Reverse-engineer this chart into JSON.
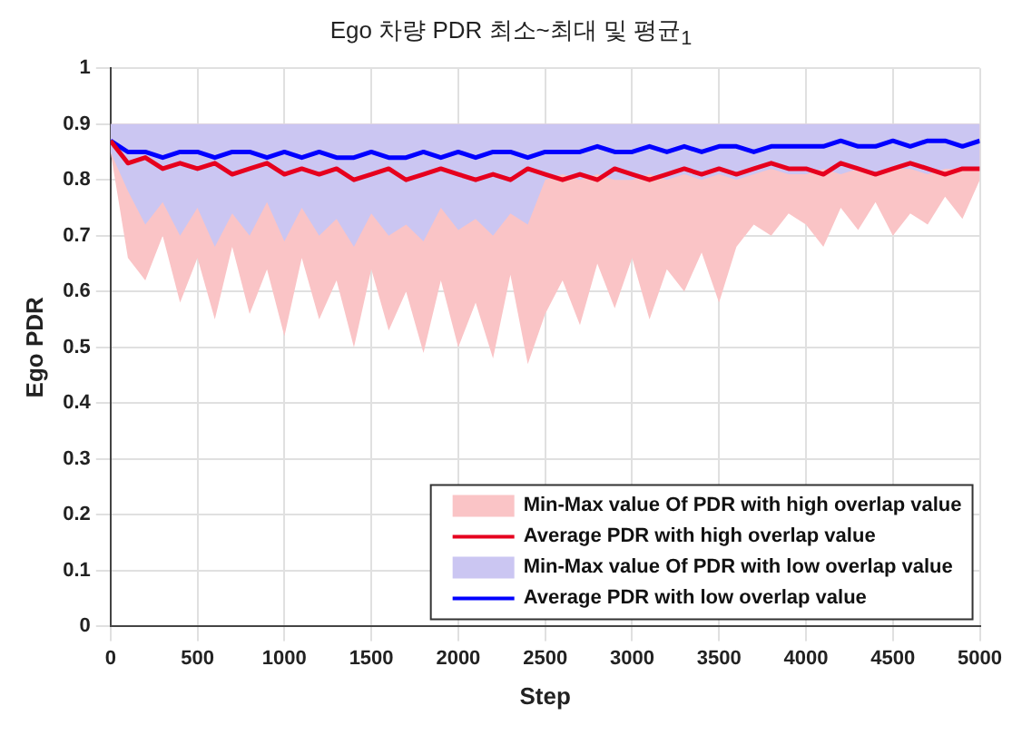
{
  "chart_data": {
    "type": "line",
    "title": "Ego 차량 PDR 최소~최대 및 평균$_{1}$",
    "xlabel": "Step",
    "ylabel": "Ego PDR",
    "x": [
      0,
      100,
      200,
      300,
      400,
      500,
      600,
      700,
      800,
      900,
      1000,
      1100,
      1200,
      1300,
      1400,
      1500,
      1600,
      1700,
      1800,
      1900,
      2000,
      2100,
      2200,
      2300,
      2400,
      2500,
      2600,
      2700,
      2800,
      2900,
      3000,
      3100,
      3200,
      3300,
      3400,
      3500,
      3600,
      3700,
      3800,
      3900,
      4000,
      4100,
      4200,
      4300,
      4400,
      4500,
      4600,
      4700,
      4800,
      4900,
      5000
    ],
    "series": [
      {
        "type": "area",
        "name": "Min-Max value Of PDR with high overlap value",
        "color": "#fac4c6",
        "values": [
          null,
          null,
          null,
          null,
          null,
          null,
          null,
          null,
          null,
          null,
          null,
          null,
          null,
          null,
          null,
          null,
          null,
          null,
          null,
          null,
          null,
          null,
          null,
          null,
          null,
          null,
          null,
          null,
          null,
          null,
          null,
          null,
          null,
          null,
          null,
          null,
          null,
          null,
          null,
          null,
          null,
          null,
          null,
          null,
          null,
          null,
          null,
          null,
          null,
          null,
          null
        ]
      },
      {
        "type": "line",
        "name": "Average PDR with high overlap value",
        "color": "#e6001e",
        "values": [
          0.87,
          0.83,
          0.84,
          0.82,
          0.83,
          0.82,
          0.83,
          0.81,
          0.82,
          0.83,
          0.81,
          0.82,
          0.81,
          0.82,
          0.8,
          0.81,
          0.82,
          0.8,
          0.81,
          0.82,
          0.81,
          0.8,
          0.81,
          0.8,
          0.82,
          0.81,
          0.8,
          0.81,
          0.8,
          0.82,
          0.81,
          0.8,
          0.81,
          0.82,
          0.81,
          0.82,
          0.81,
          0.82,
          0.83,
          0.82,
          0.82,
          0.81,
          0.83,
          0.82,
          0.81,
          0.82,
          0.83,
          0.82,
          0.81,
          0.82,
          0.82
        ],
        "lower": [
          0.85,
          0.66,
          0.62,
          0.7,
          0.58,
          0.66,
          0.55,
          0.68,
          0.56,
          0.64,
          0.52,
          0.66,
          0.55,
          0.62,
          0.5,
          0.64,
          0.53,
          0.6,
          0.49,
          0.62,
          0.5,
          0.58,
          0.48,
          0.63,
          0.47,
          0.56,
          0.62,
          0.54,
          0.65,
          0.57,
          0.66,
          0.55,
          0.64,
          0.6,
          0.67,
          0.58,
          0.68,
          0.72,
          0.7,
          0.74,
          0.72,
          0.68,
          0.75,
          0.71,
          0.76,
          0.7,
          0.74,
          0.72,
          0.77,
          0.73,
          0.8
        ],
        "upper": [
          0.9,
          0.9,
          0.9,
          0.9,
          0.9,
          0.9,
          0.9,
          0.9,
          0.9,
          0.9,
          0.9,
          0.9,
          0.9,
          0.9,
          0.9,
          0.9,
          0.9,
          0.9,
          0.9,
          0.9,
          0.9,
          0.9,
          0.9,
          0.9,
          0.9,
          0.9,
          0.9,
          0.9,
          0.9,
          0.9,
          0.9,
          0.9,
          0.9,
          0.9,
          0.9,
          0.9,
          0.9,
          0.9,
          0.9,
          0.9,
          0.9,
          0.9,
          0.9,
          0.9,
          0.9,
          0.9,
          0.9,
          0.9,
          0.9,
          0.9,
          0.9
        ]
      },
      {
        "type": "area",
        "name": "Min-Max value Of PDR with low overlap value",
        "color": "#cbc6f2",
        "values": [
          null,
          null,
          null,
          null,
          null,
          null,
          null,
          null,
          null,
          null,
          null,
          null,
          null,
          null,
          null,
          null,
          null,
          null,
          null,
          null,
          null,
          null,
          null,
          null,
          null,
          null,
          null,
          null,
          null,
          null,
          null,
          null,
          null,
          null,
          null,
          null,
          null,
          null,
          null,
          null,
          null,
          null,
          null,
          null,
          null,
          null,
          null,
          null,
          null,
          null,
          null
        ]
      },
      {
        "type": "line",
        "name": "Average PDR with low overlap value",
        "color": "#0000ff",
        "values": [
          0.87,
          0.85,
          0.85,
          0.84,
          0.85,
          0.85,
          0.84,
          0.85,
          0.85,
          0.84,
          0.85,
          0.84,
          0.85,
          0.84,
          0.84,
          0.85,
          0.84,
          0.84,
          0.85,
          0.84,
          0.85,
          0.84,
          0.85,
          0.85,
          0.84,
          0.85,
          0.85,
          0.85,
          0.86,
          0.85,
          0.85,
          0.86,
          0.85,
          0.86,
          0.85,
          0.86,
          0.86,
          0.85,
          0.86,
          0.86,
          0.86,
          0.86,
          0.87,
          0.86,
          0.86,
          0.87,
          0.86,
          0.87,
          0.87,
          0.86,
          0.87
        ],
        "lower": [
          0.85,
          0.78,
          0.72,
          0.76,
          0.7,
          0.75,
          0.68,
          0.74,
          0.7,
          0.76,
          0.69,
          0.75,
          0.7,
          0.73,
          0.68,
          0.74,
          0.7,
          0.72,
          0.69,
          0.75,
          0.71,
          0.73,
          0.7,
          0.74,
          0.72,
          0.8,
          0.81,
          0.8,
          0.81,
          0.8,
          0.8,
          0.81,
          0.8,
          0.81,
          0.8,
          0.81,
          0.8,
          0.81,
          0.82,
          0.81,
          0.81,
          0.82,
          0.81,
          0.82,
          0.81,
          0.82,
          0.82,
          0.81,
          0.82,
          0.82,
          0.82
        ],
        "upper": [
          0.9,
          0.9,
          0.9,
          0.9,
          0.9,
          0.9,
          0.9,
          0.9,
          0.9,
          0.9,
          0.9,
          0.9,
          0.9,
          0.9,
          0.9,
          0.9,
          0.9,
          0.9,
          0.9,
          0.9,
          0.9,
          0.9,
          0.9,
          0.9,
          0.9,
          0.9,
          0.9,
          0.9,
          0.9,
          0.9,
          0.9,
          0.9,
          0.9,
          0.9,
          0.9,
          0.9,
          0.9,
          0.9,
          0.9,
          0.9,
          0.9,
          0.9,
          0.9,
          0.9,
          0.9,
          0.9,
          0.9,
          0.9,
          0.9,
          0.9,
          0.9
        ]
      }
    ],
    "xlim": [
      0,
      5000
    ],
    "xticks": [
      0,
      500,
      {
        "value": 1000,
        "label": "1000"
      },
      {
        "value": 1500,
        "label": "1500"
      },
      {
        "value": 2000,
        "label": "2000"
      },
      {
        "value": 2500,
        "label": "2500"
      },
      {
        "value": 3000,
        "label": "3000"
      },
      {
        "value": 3500,
        "label": "3500"
      },
      {
        "value": 4000,
        "label": "4000"
      },
      {
        "value": 4500,
        "label": "4500"
      },
      {
        "value": 5000,
        "label": "5000"
      }
    ],
    "ylim": [
      0,
      1
    ],
    "yticks": [
      0,
      0.1,
      0.2,
      0.3,
      0.4,
      0.5,
      0.6,
      0.7,
      0.8,
      0.9,
      {
        "value": 1,
        "label": "1"
      }
    ],
    "grid": true,
    "legend": "bottom right",
    "marker": "none",
    "line_style": "solid"
  }
}
